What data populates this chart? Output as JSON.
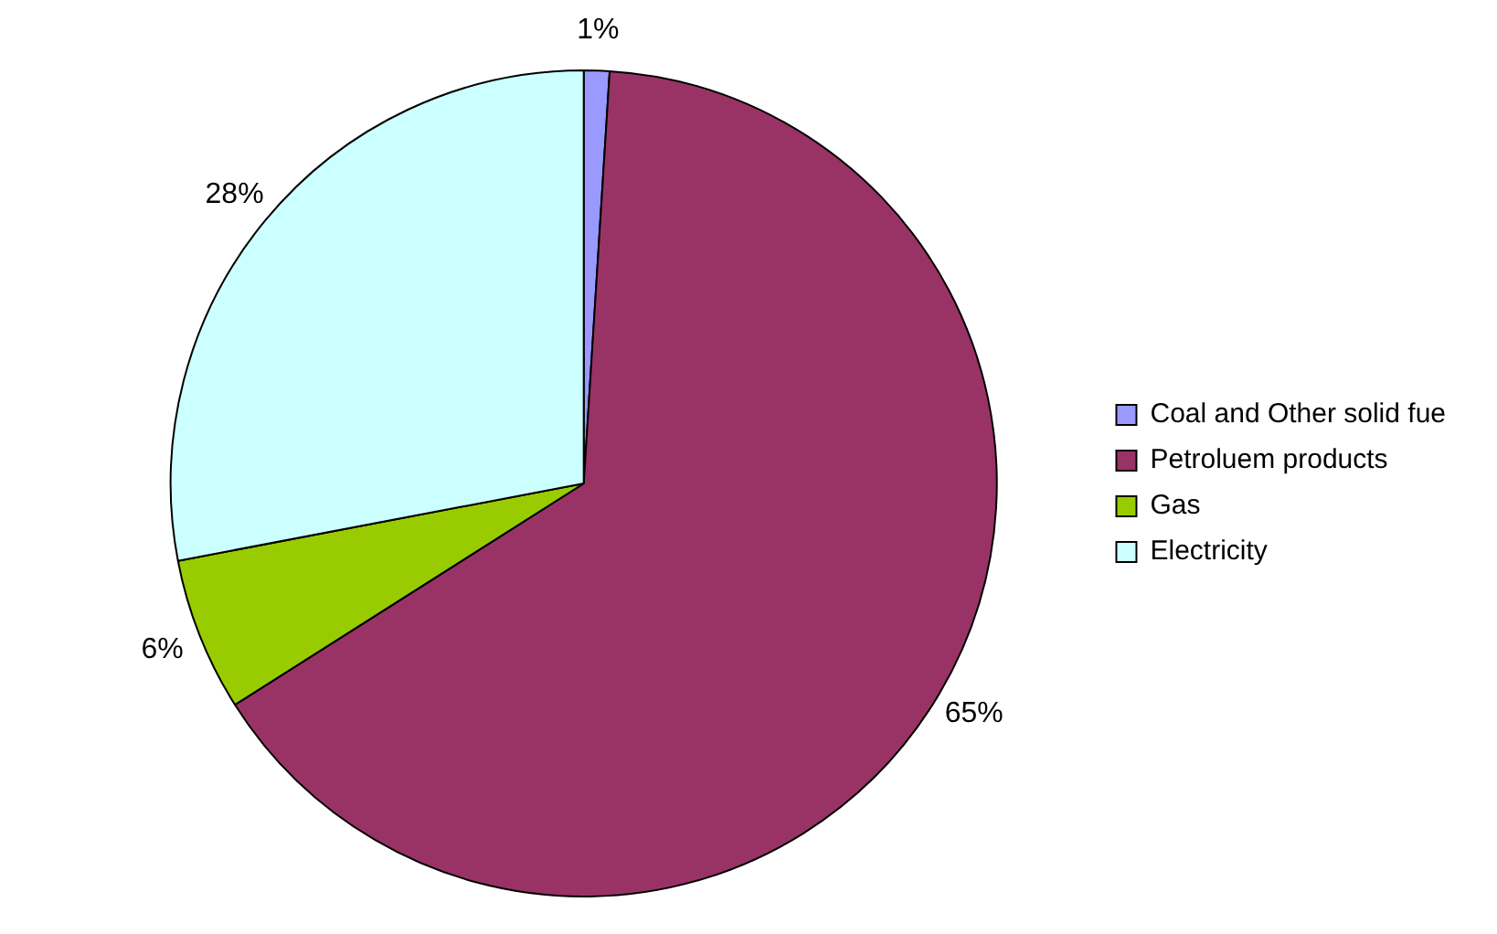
{
  "chart_data": {
    "type": "pie",
    "categories": [
      "Coal and Other solid fue",
      "Petroluem products",
      "Gas",
      "Electricity"
    ],
    "values": [
      1,
      65,
      6,
      28
    ],
    "value_labels": [
      "1%",
      "65%",
      "6%",
      "28%"
    ],
    "colors": [
      "#9999ff",
      "#993366",
      "#99cc00",
      "#ccffff"
    ],
    "legend": "right"
  }
}
